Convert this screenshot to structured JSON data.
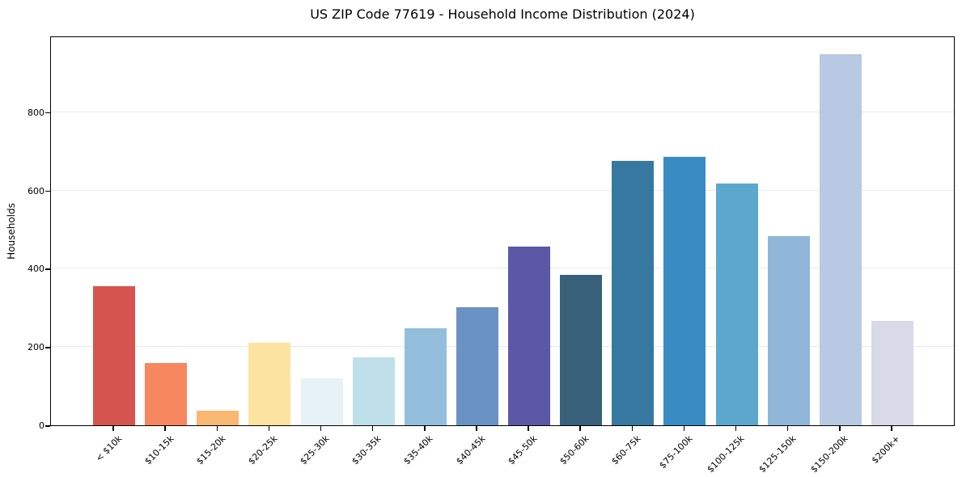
{
  "chart_data": {
    "type": "bar",
    "title": "US ZIP Code 77619 - Household Income Distribution (2024)",
    "xlabel": "",
    "ylabel": "Households",
    "categories": [
      "< $10k",
      "$10-15k",
      "$15-20k",
      "$20-25k",
      "$25-30k",
      "$30-35k",
      "$35-40k",
      "$40-45k",
      "$45-50k",
      "$50-60k",
      "$60-75k",
      "$75-100k",
      "$100-125k",
      "$125-150k",
      "$150-200k",
      "$200k+"
    ],
    "values": [
      356,
      160,
      38,
      211,
      120,
      174,
      249,
      302,
      457,
      385,
      676,
      687,
      618,
      484,
      948,
      266
    ],
    "bar_colors": [
      "#d6544f",
      "#f6875f",
      "#f9b871",
      "#fde3a1",
      "#e7f2f6",
      "#bfe0eb",
      "#93bfdd",
      "#6b92c4",
      "#5b58a7",
      "#38607a",
      "#36789f",
      "#388cc3",
      "#5ba7cd",
      "#90b6d9",
      "#b9c9e3",
      "#d8dae8"
    ],
    "yticks": [
      0,
      200,
      400,
      600,
      800
    ],
    "ylim": [
      0,
      996
    ],
    "grid": "horizontal-only",
    "grid_color": "#e9e9e9",
    "spine_color": "#000000",
    "background_color": "#ffffff",
    "legend": "none"
  }
}
